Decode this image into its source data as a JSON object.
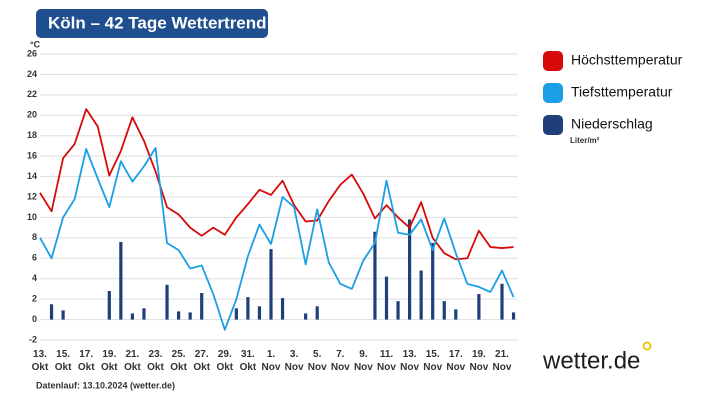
{
  "chart_data": {
    "type": "line-bar",
    "title": "Köln – 42 Tage Wettertrend",
    "y_unit": "°C",
    "source": "Datenlauf: 13.10.2024 (wetter.de)",
    "logo": "wetter.de",
    "precip_unit": "Liter/m²",
    "categories": [
      "13. Okt",
      null,
      "15. Okt",
      null,
      "17. Okt",
      null,
      "19. Okt",
      null,
      "21. Okt",
      null,
      "23. Okt",
      null,
      "25. Okt",
      null,
      "27. Okt",
      null,
      "29. Okt",
      null,
      "31. Okt",
      null,
      "1. Nov",
      null,
      "3. Nov",
      null,
      "5. Nov",
      null,
      "7. Nov",
      null,
      "9. Nov",
      null,
      "11. Nov",
      null,
      "13. Nov",
      null,
      "15. Nov",
      null,
      "17. Nov",
      null,
      "19. Nov",
      null,
      "21. Nov",
      null
    ],
    "ylim": [
      -2,
      26
    ],
    "yticks": [
      -2,
      0,
      2,
      4,
      6,
      8,
      10,
      12,
      14,
      16,
      18,
      20,
      22,
      24,
      26
    ],
    "grid": true,
    "series": [
      {
        "name": "Höchsttemperatur",
        "color": "#d60a0a",
        "kind": "line",
        "values": [
          12.4,
          10.6,
          15.8,
          17.2,
          20.6,
          18.9,
          14.1,
          16.5,
          19.8,
          17.5,
          14.5,
          11,
          10.3,
          9,
          8.2,
          9,
          8.3,
          10,
          11.3,
          12.7,
          12.2,
          13.6,
          11.2,
          9.6,
          9.7,
          11.6,
          13.2,
          14.2,
          12.3,
          9.9,
          11.2,
          10,
          9,
          11.5,
          8,
          6.5,
          5.9,
          6,
          8.7,
          7.1,
          7,
          7.1
        ]
      },
      {
        "name": "Tiefsttemperatur",
        "color": "#1a9fe6",
        "kind": "line",
        "values": [
          8,
          6,
          10,
          11.8,
          16.7,
          13.8,
          11,
          15.5,
          13.5,
          15,
          16.8,
          7.5,
          6.8,
          5,
          5.3,
          2.5,
          -1,
          2,
          6.2,
          9.3,
          7.4,
          12,
          11,
          5.4,
          10.8,
          5.6,
          3.5,
          3,
          5.8,
          7.5,
          13.6,
          8.5,
          8.3,
          9.8,
          6.8,
          9.9,
          6.5,
          3.5,
          3.2,
          2.7,
          4.8,
          2.2
        ]
      },
      {
        "name": "Niederschlag",
        "color": "#1f3f7a",
        "kind": "bar",
        "values": [
          0,
          1.5,
          0.9,
          0,
          0,
          0,
          2.8,
          7.6,
          0.6,
          1.1,
          0,
          3.4,
          0.8,
          0.7,
          2.6,
          0,
          0,
          1.1,
          2.2,
          1.3,
          6.9,
          2.1,
          0,
          0.6,
          1.3,
          0,
          0,
          0,
          0,
          8.6,
          4.2,
          1.8,
          9.8,
          4.8,
          7.5,
          1.8,
          1,
          0,
          2.5,
          0,
          3.5,
          0.7
        ]
      }
    ]
  }
}
